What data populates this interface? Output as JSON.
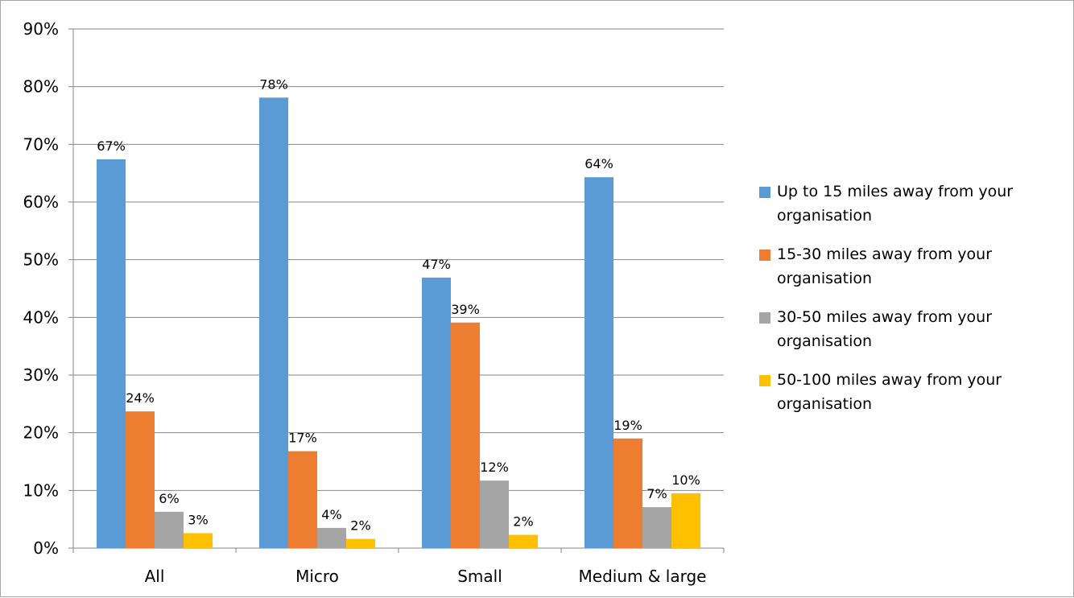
{
  "chart_data": {
    "type": "bar",
    "title": "",
    "xlabel": "",
    "ylabel": "",
    "ylim": [
      0,
      90
    ],
    "y_ticks": [
      "0%",
      "10%",
      "20%",
      "30%",
      "40%",
      "50%",
      "60%",
      "70%",
      "80%",
      "90%"
    ],
    "grid": true,
    "legend_position": "right",
    "categories": [
      "All",
      "Micro",
      "Small",
      "Medium & large"
    ],
    "series": [
      {
        "name": "Up to 15 miles away from your organisation",
        "color": "#5b9bd5",
        "values": [
          67.4,
          78.1,
          46.9,
          64.3
        ],
        "labels": [
          "67%",
          "78%",
          "47%",
          "64%"
        ]
      },
      {
        "name": "15-30 miles away from your organisation",
        "color": "#ed7d31",
        "values": [
          23.7,
          16.8,
          39.1,
          19.0
        ],
        "labels": [
          "24%",
          "17%",
          "39%",
          "19%"
        ]
      },
      {
        "name": "30-50 miles away from your organisation",
        "color": "#a5a5a5",
        "values": [
          6.3,
          3.5,
          11.7,
          7.1
        ],
        "labels": [
          "6%",
          "4%",
          "12%",
          "7%"
        ]
      },
      {
        "name": "50-100 miles away  from your organisation",
        "color": "#ffc000",
        "values": [
          2.6,
          1.6,
          2.3,
          9.5
        ],
        "labels": [
          "3%",
          "2%",
          "2%",
          "10%"
        ]
      }
    ]
  }
}
